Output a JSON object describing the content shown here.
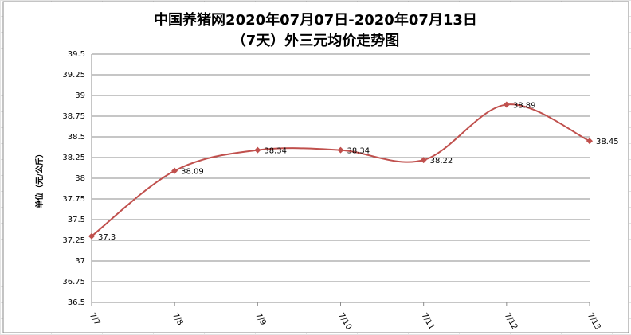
{
  "chart_data": {
    "type": "line",
    "title": "中国养猪网2020年07月07日-2020年07月13日",
    "subtitle": "（7天）外三元均价走势图",
    "y_label": "单位（元/公斤）",
    "categories": [
      "7/7",
      "7/8",
      "7/9",
      "7/10",
      "7/11",
      "7/12",
      "7/13"
    ],
    "series": [
      {
        "name": "外三元均价",
        "color": "#c0504d",
        "values": [
          37.3,
          38.09,
          38.34,
          38.34,
          38.22,
          38.89,
          38.45
        ]
      }
    ],
    "ylim": [
      36.5,
      39.5
    ],
    "yticks": [
      36.5,
      36.75,
      37,
      37.25,
      37.5,
      37.75,
      38,
      38.25,
      38.5,
      38.75,
      39,
      39.25,
      39.5
    ],
    "grid": true,
    "smooth": true,
    "data_labels": true
  }
}
